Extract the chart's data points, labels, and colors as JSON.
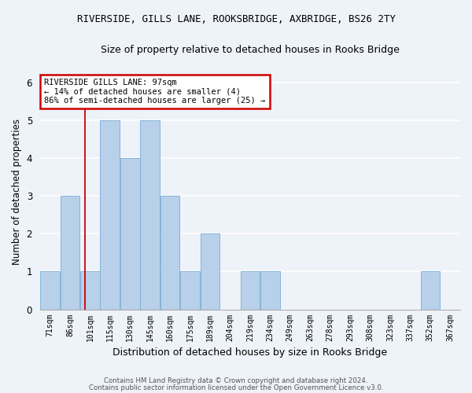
{
  "title_line1": "RIVERSIDE, GILLS LANE, ROOKSBRIDGE, AXBRIDGE, BS26 2TY",
  "title_line2": "Size of property relative to detached houses in Rooks Bridge",
  "xlabel": "Distribution of detached houses by size in Rooks Bridge",
  "ylabel": "Number of detached properties",
  "categories": [
    "71sqm",
    "86sqm",
    "101sqm",
    "115sqm",
    "130sqm",
    "145sqm",
    "160sqm",
    "175sqm",
    "189sqm",
    "204sqm",
    "219sqm",
    "234sqm",
    "249sqm",
    "263sqm",
    "278sqm",
    "293sqm",
    "308sqm",
    "323sqm",
    "337sqm",
    "352sqm",
    "367sqm"
  ],
  "values": [
    1,
    3,
    1,
    5,
    4,
    5,
    3,
    1,
    2,
    0,
    1,
    1,
    0,
    0,
    0,
    0,
    0,
    0,
    0,
    1,
    0
  ],
  "bar_color": "#b8d0ea",
  "bar_edge_color": "#7aadd4",
  "annotation_box_text": "RIVERSIDE GILLS LANE: 97sqm\n← 14% of detached houses are smaller (4)\n86% of semi-detached houses are larger (25) →",
  "annotation_box_color": "#ffffff",
  "annotation_box_edge_color": "#cc0000",
  "ylim": [
    0,
    6.2
  ],
  "yticks": [
    0,
    1,
    2,
    3,
    4,
    5,
    6
  ],
  "background_color": "#eef2f9",
  "grid_color": "#ffffff",
  "footer_line1": "Contains HM Land Registry data © Crown copyright and database right 2024.",
  "footer_line2": "Contains public sector information licensed under the Open Government Licence v3.0."
}
